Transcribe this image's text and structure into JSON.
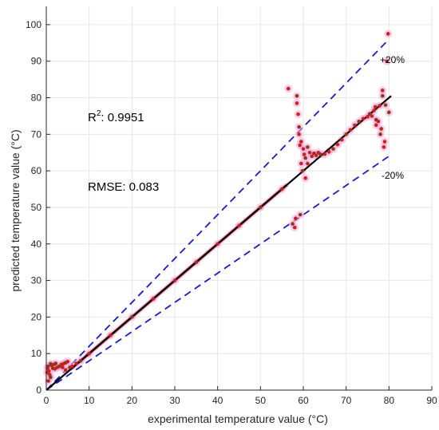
{
  "chart_data": {
    "type": "scatter",
    "title": "",
    "xlabel": "experimental temperature value (°C)",
    "ylabel": "predicted temperature value (°C)",
    "xlim": [
      0,
      90
    ],
    "ylim": [
      0,
      105
    ],
    "xticks": [
      0,
      10,
      20,
      30,
      40,
      50,
      60,
      70,
      80,
      90
    ],
    "yticks": [
      0,
      10,
      20,
      30,
      40,
      50,
      60,
      70,
      80,
      90,
      100
    ],
    "grid": true,
    "colors": {
      "points": "#cc1f1f",
      "points_dark": "#8b3a1a",
      "glow": "#f0a6d8",
      "fit_line": "#000000",
      "band_lines": "#1a1acc"
    },
    "annotations": {
      "r2_base": "R",
      "r2_sup": "2",
      "r2_value": ": 0.9951",
      "rmse": "RMSE: 0.083",
      "upper_band": "+20%",
      "lower_band": "-20%"
    },
    "reference_lines": [
      {
        "name": "+20%",
        "style": "dashed",
        "x": [
          0,
          80
        ],
        "y": [
          0,
          96
        ]
      },
      {
        "name": "-20%",
        "style": "dashed",
        "x": [
          0,
          80
        ],
        "y": [
          0,
          64
        ]
      }
    ],
    "fit_line": {
      "x": [
        0,
        80.5
      ],
      "y": [
        0,
        80.5
      ]
    },
    "series": [
      {
        "points": [
          [
            0.4,
            6.5
          ],
          [
            0.6,
            5.2
          ],
          [
            0.8,
            4.2
          ],
          [
            1.0,
            3.5
          ],
          [
            0.5,
            2.5
          ],
          [
            1.2,
            6.8
          ],
          [
            1.5,
            6.0
          ],
          [
            2.0,
            5.8
          ],
          [
            2.5,
            6.2
          ],
          [
            3.0,
            6.5
          ],
          [
            3.5,
            7.0
          ],
          [
            4.0,
            7.2
          ],
          [
            4.5,
            7.5
          ],
          [
            5.0,
            7.8
          ],
          [
            1.8,
            7.0
          ],
          [
            2.2,
            7.3
          ],
          [
            0.3,
            6.0
          ],
          [
            0.2,
            4.8
          ],
          [
            1.0,
            7.2
          ],
          [
            3.8,
            6.2
          ],
          [
            4.5,
            5.5
          ],
          [
            5.5,
            6.2
          ],
          [
            6.0,
            6.5
          ],
          [
            7.0,
            7.3
          ],
          [
            8.0,
            8.0
          ],
          [
            10,
            10
          ],
          [
            15,
            15
          ],
          [
            20,
            20
          ],
          [
            25,
            25
          ],
          [
            30,
            30
          ],
          [
            35,
            35
          ],
          [
            40,
            40
          ],
          [
            45,
            45
          ],
          [
            50,
            50
          ],
          [
            55,
            55
          ],
          [
            56.5,
            82.5
          ],
          [
            57.5,
            45.5
          ],
          [
            58.0,
            44.5
          ],
          [
            58.2,
            47.0
          ],
          [
            58.5,
            80.5
          ],
          [
            58.5,
            78.5
          ],
          [
            58.8,
            75.5
          ],
          [
            59.0,
            72.0
          ],
          [
            59.0,
            70.0
          ],
          [
            59.2,
            67.0
          ],
          [
            59.3,
            48.0
          ],
          [
            59.5,
            68.0
          ],
          [
            59.5,
            62.0
          ],
          [
            59.8,
            60.0
          ],
          [
            60.0,
            66.0
          ],
          [
            60.2,
            64.5
          ],
          [
            60.5,
            63.5
          ],
          [
            60.5,
            58.0
          ],
          [
            61.0,
            62.0
          ],
          [
            61.0,
            66.5
          ],
          [
            61.5,
            65.0
          ],
          [
            62.0,
            64.0
          ],
          [
            62.5,
            64.8
          ],
          [
            63.0,
            64.2
          ],
          [
            63.5,
            65.0
          ],
          [
            64.0,
            64.5
          ],
          [
            65.0,
            64.6
          ],
          [
            66.0,
            65.2
          ],
          [
            67.0,
            66.0
          ],
          [
            68.0,
            67.2
          ],
          [
            69.0,
            68.5
          ],
          [
            70.0,
            70.0
          ],
          [
            71.0,
            71.2
          ],
          [
            72.0,
            72.5
          ],
          [
            73.0,
            73.5
          ],
          [
            74.0,
            74.3
          ],
          [
            75.0,
            74.8
          ],
          [
            75.5,
            75.6
          ],
          [
            76.0,
            75.0
          ],
          [
            76.5,
            76.5
          ],
          [
            77.0,
            74.0
          ],
          [
            77.5,
            73.5
          ],
          [
            77.8,
            77.8
          ],
          [
            78.0,
            70.0
          ],
          [
            78.2,
            71.5
          ],
          [
            78.5,
            82.0
          ],
          [
            78.5,
            80.5
          ],
          [
            78.8,
            66.5
          ],
          [
            79.0,
            68.0
          ],
          [
            79.2,
            78.0
          ],
          [
            79.5,
            90.0
          ],
          [
            79.8,
            97.5
          ],
          [
            80.0,
            76.0
          ],
          [
            77.0,
            72.5
          ],
          [
            76.8,
            77.5
          ]
        ]
      }
    ]
  }
}
